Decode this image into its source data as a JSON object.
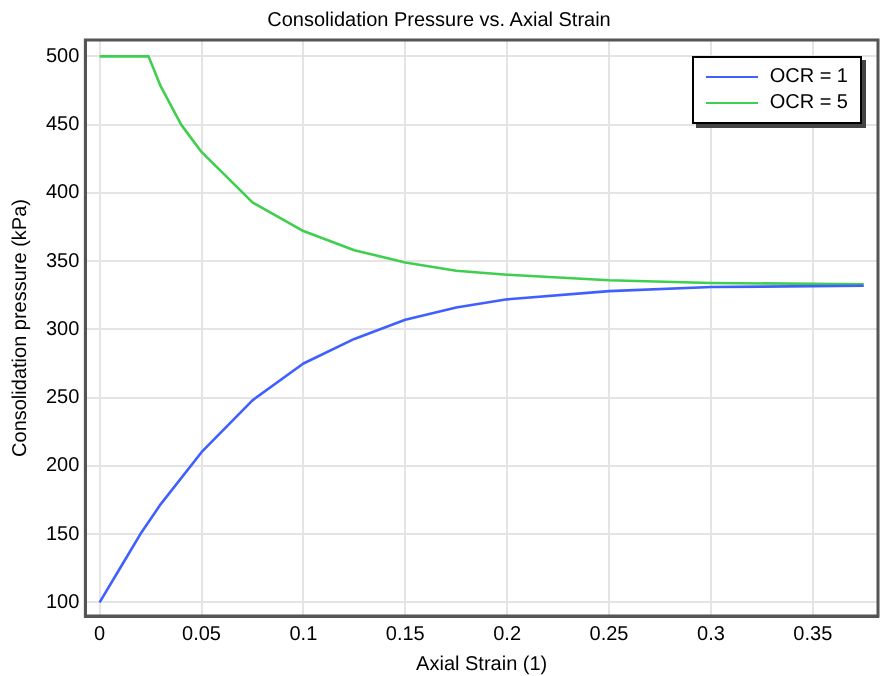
{
  "chart_data": {
    "type": "line",
    "title": "Consolidation Pressure vs. Axial Strain",
    "xlabel": "Axial Strain (1)",
    "ylabel": "Consolidation pressure (kPa)",
    "series": [
      {
        "name": "OCR = 1",
        "color": "#3f5fff",
        "x": [
          0,
          0.01,
          0.02,
          0.03,
          0.05,
          0.075,
          0.1,
          0.125,
          0.15,
          0.175,
          0.2,
          0.25,
          0.3,
          0.375
        ],
        "values": [
          100,
          125,
          150,
          172,
          210,
          248,
          275,
          293,
          307,
          316,
          322,
          328,
          331,
          332
        ]
      },
      {
        "name": "OCR = 5",
        "color": "#3fcf4f",
        "x": [
          0,
          0.024,
          0.03,
          0.04,
          0.05,
          0.075,
          0.1,
          0.125,
          0.15,
          0.175,
          0.2,
          0.25,
          0.3,
          0.375
        ],
        "values": [
          500,
          500,
          478,
          450,
          430,
          393,
          372,
          358,
          349,
          343,
          340,
          336,
          334,
          333
        ]
      }
    ],
    "xlim": [
      -0.007,
      0.382
    ],
    "ylim": [
      90,
      512
    ],
    "xticks": [
      0,
      0.05,
      0.1,
      0.15,
      0.2,
      0.25,
      0.3,
      0.35
    ],
    "yticks": [
      100,
      150,
      200,
      250,
      300,
      350,
      400,
      450,
      500
    ],
    "grid": true,
    "legend": "top right",
    "marker": "none",
    "line_style": "solid"
  }
}
